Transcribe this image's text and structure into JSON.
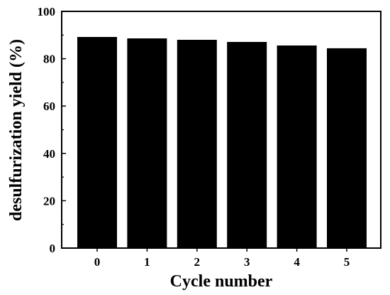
{
  "chart_data": {
    "type": "bar",
    "title": "",
    "xlabel": "Cycle number",
    "ylabel": "desulfurization yield (%)",
    "categories": [
      "0",
      "1",
      "2",
      "3",
      "4",
      "5"
    ],
    "values": [
      89.2,
      88.6,
      88.0,
      87.1,
      85.6,
      84.4
    ],
    "ylim": [
      0,
      100
    ],
    "yticks": [
      "0",
      "20",
      "40",
      "60",
      "80",
      "100"
    ],
    "grid": false,
    "bar_color": "#000000"
  }
}
